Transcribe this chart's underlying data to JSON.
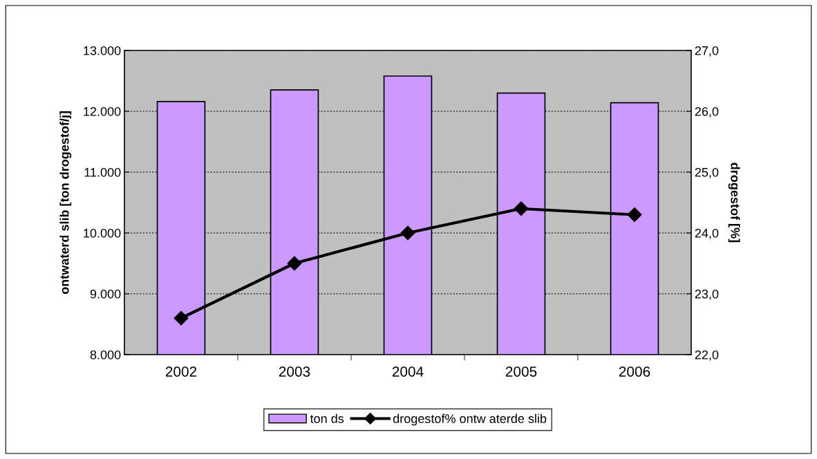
{
  "chart_data": {
    "type": "bar",
    "categories": [
      "2002",
      "2003",
      "2004",
      "2005",
      "2006"
    ],
    "series": [
      {
        "name": "ton ds",
        "color": "#cc99ff",
        "values": [
          12160,
          12350,
          12580,
          12300,
          12140
        ]
      },
      {
        "name": "drogestof% ontw aterde slib",
        "type": "line",
        "axis": "y2",
        "color": "#000000",
        "marker": "diamond",
        "values": [
          22.6,
          23.5,
          24.0,
          24.4,
          24.3
        ]
      }
    ],
    "ylabel": "ontwaterd slib [ton drogestof/j]",
    "y2label": "drogestof [%]",
    "ylim": [
      8000,
      13000
    ],
    "yticks": [
      {
        "value": 8000,
        "label": "8.000"
      },
      {
        "value": 9000,
        "label": "9.000"
      },
      {
        "value": 10000,
        "label": "10.000"
      },
      {
        "value": 11000,
        "label": "11.000"
      },
      {
        "value": 12000,
        "label": "12.000"
      },
      {
        "value": 13000,
        "label": "13.000"
      }
    ],
    "y2lim": [
      22,
      27
    ],
    "y2ticks": [
      {
        "value": 22,
        "label": "22,0"
      },
      {
        "value": 23,
        "label": "23,0"
      },
      {
        "value": 24,
        "label": "24,0"
      },
      {
        "value": 25,
        "label": "25,0"
      },
      {
        "value": 26,
        "label": "26,0"
      },
      {
        "value": 27,
        "label": "27,0"
      }
    ],
    "grid": "y",
    "legend": "bottom"
  }
}
